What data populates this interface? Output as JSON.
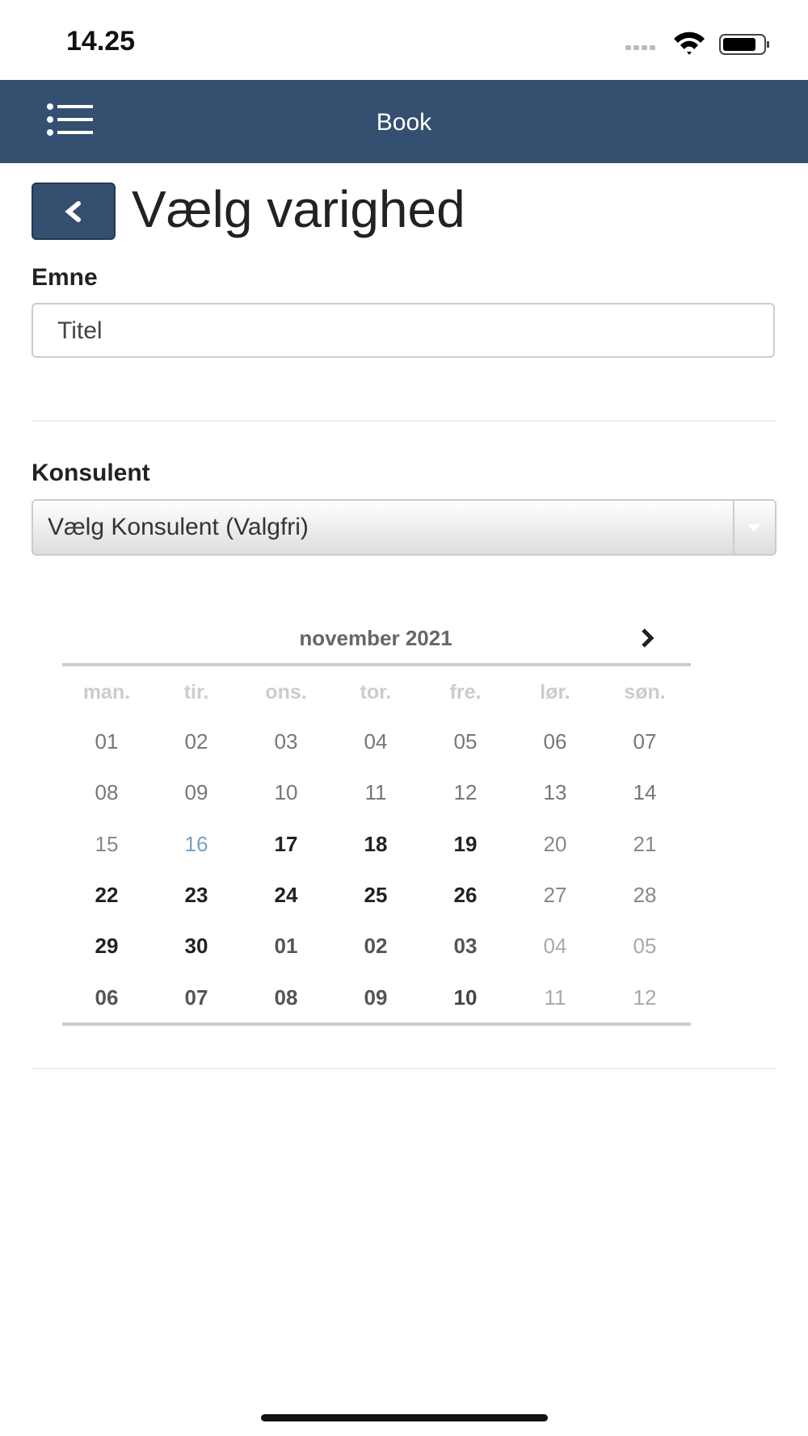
{
  "status": {
    "time": "14.25"
  },
  "navbar": {
    "title": "Book"
  },
  "page": {
    "title": "Vælg varighed"
  },
  "subject": {
    "label": "Emne",
    "placeholder": "Titel"
  },
  "consultant": {
    "label": "Konsulent",
    "placeholder": "Vælg Konsulent (Valgfri)"
  },
  "calendar": {
    "month": "november 2021",
    "weekdays": [
      "man.",
      "tir.",
      "ons.",
      "tor.",
      "fre.",
      "lør.",
      "søn."
    ],
    "weeks": [
      [
        "01",
        "02",
        "03",
        "04",
        "05",
        "06",
        "07"
      ],
      [
        "08",
        "09",
        "10",
        "11",
        "12",
        "13",
        "14"
      ],
      [
        "15",
        "16",
        "17",
        "18",
        "19",
        "20",
        "21"
      ],
      [
        "22",
        "23",
        "24",
        "25",
        "26",
        "27",
        "28"
      ],
      [
        "29",
        "30",
        "01",
        "02",
        "03",
        "04",
        "05"
      ],
      [
        "06",
        "07",
        "08",
        "09",
        "10",
        "11",
        "12"
      ]
    ],
    "day_colors": [
      [
        "#777",
        "#777",
        "#777",
        "#777",
        "#777",
        "#777",
        "#777"
      ],
      [
        "#777",
        "#777",
        "#777",
        "#777",
        "#777",
        "#777",
        "#777"
      ],
      [
        "#888",
        "#7a9fbf",
        "#222",
        "#222",
        "#222",
        "#888",
        "#888"
      ],
      [
        "#222",
        "#222",
        "#222",
        "#222",
        "#222",
        "#888",
        "#888"
      ],
      [
        "#222",
        "#222",
        "#555",
        "#555",
        "#555",
        "#aaa",
        "#aaa"
      ],
      [
        "#555",
        "#555",
        "#555",
        "#555",
        "#444",
        "#aaa",
        "#aaa"
      ]
    ],
    "day_weights": [
      [
        400,
        400,
        400,
        400,
        400,
        400,
        400
      ],
      [
        400,
        400,
        400,
        400,
        400,
        400,
        400
      ],
      [
        400,
        400,
        700,
        700,
        700,
        400,
        400
      ],
      [
        700,
        700,
        700,
        700,
        700,
        400,
        400
      ],
      [
        700,
        700,
        700,
        700,
        700,
        400,
        400
      ],
      [
        700,
        700,
        700,
        700,
        700,
        400,
        400
      ]
    ]
  }
}
